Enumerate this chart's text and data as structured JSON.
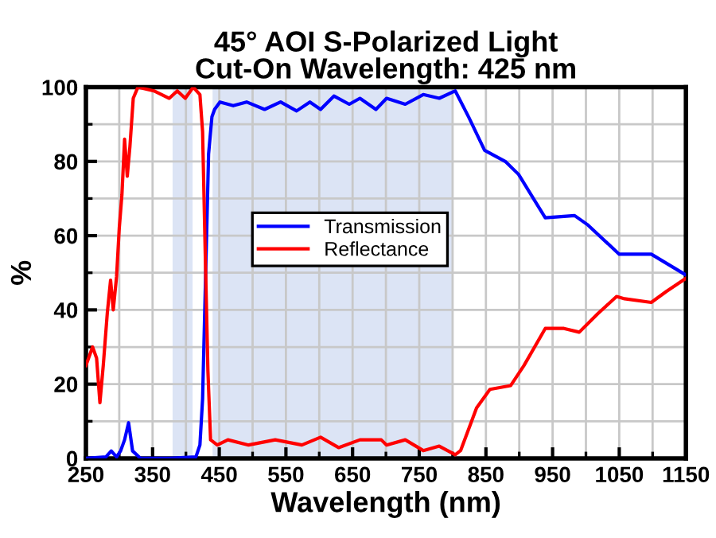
{
  "chart_data": {
    "type": "line",
    "title": "45° AOI S-Polarized Light\nCut-On Wavelength: 425 nm",
    "xlabel": "Wavelength (nm)",
    "ylabel": "%",
    "xlim": [
      250,
      1150
    ],
    "xticks": [
      250,
      350,
      450,
      550,
      650,
      750,
      850,
      950,
      1050,
      1150
    ],
    "ylim": [
      0,
      100
    ],
    "yticks": [
      0,
      20,
      40,
      60,
      80,
      100
    ],
    "grid": true,
    "legend": "center",
    "bands": [
      {
        "axis": "x",
        "from": 380,
        "to": 410,
        "color": "#dce4f5"
      },
      {
        "axis": "x",
        "from": 440,
        "to": 800,
        "color": "#dce4f5"
      }
    ],
    "series": [
      {
        "name": "Transmission",
        "color": "#0000ff",
        "x": [
          250,
          280,
          288,
          296,
          302,
          308,
          314,
          320,
          332,
          375,
          415,
          421,
          425,
          434,
          439,
          443,
          451,
          471,
          491,
          518,
          542,
          566,
          586,
          602,
          622,
          645,
          661,
          685,
          701,
          729,
          756,
          780,
          804,
          824,
          848,
          879,
          899,
          939,
          983,
          1002,
          1050,
          1098,
          1150
        ],
        "values": [
          0,
          0.4,
          2,
          0.4,
          2,
          5,
          9.6,
          2,
          0,
          0,
          0.4,
          3.6,
          16,
          82,
          92,
          94,
          96,
          95,
          96,
          94,
          96,
          93.6,
          96,
          94,
          97.6,
          95.4,
          97,
          94,
          97,
          95.4,
          98,
          97,
          99,
          92,
          83,
          80,
          76.5,
          64.8,
          65.4,
          63,
          55,
          55,
          49.4
        ]
      },
      {
        "name": "Reflectance",
        "color": "#ff0000",
        "x": [
          250,
          260,
          266,
          271,
          276,
          282,
          287,
          291,
          296,
          300,
          304,
          308,
          312,
          316,
          321,
          328,
          352,
          375,
          387,
          399,
          411,
          421,
          425,
          429,
          433,
          437,
          447,
          463,
          494,
          534,
          574,
          602,
          629,
          661,
          693,
          701,
          729,
          756,
          780,
          804,
          812,
          836,
          856,
          887,
          907,
          939,
          967,
          990,
          1018,
          1046,
          1058,
          1098,
          1121,
          1150
        ],
        "values": [
          25,
          30,
          27,
          15,
          25,
          39,
          48,
          40,
          49,
          62,
          71,
          86,
          76,
          84,
          97,
          100,
          99,
          97,
          99,
          97,
          100,
          98,
          88,
          55,
          23.5,
          5,
          3.6,
          5,
          3.6,
          5,
          3.6,
          5.7,
          2.9,
          5,
          5,
          3.6,
          5,
          2.1,
          3.3,
          1,
          2.1,
          13.6,
          18.6,
          19.6,
          25,
          35,
          35,
          34,
          39,
          43.6,
          43,
          42,
          45,
          48.5
        ]
      }
    ]
  }
}
